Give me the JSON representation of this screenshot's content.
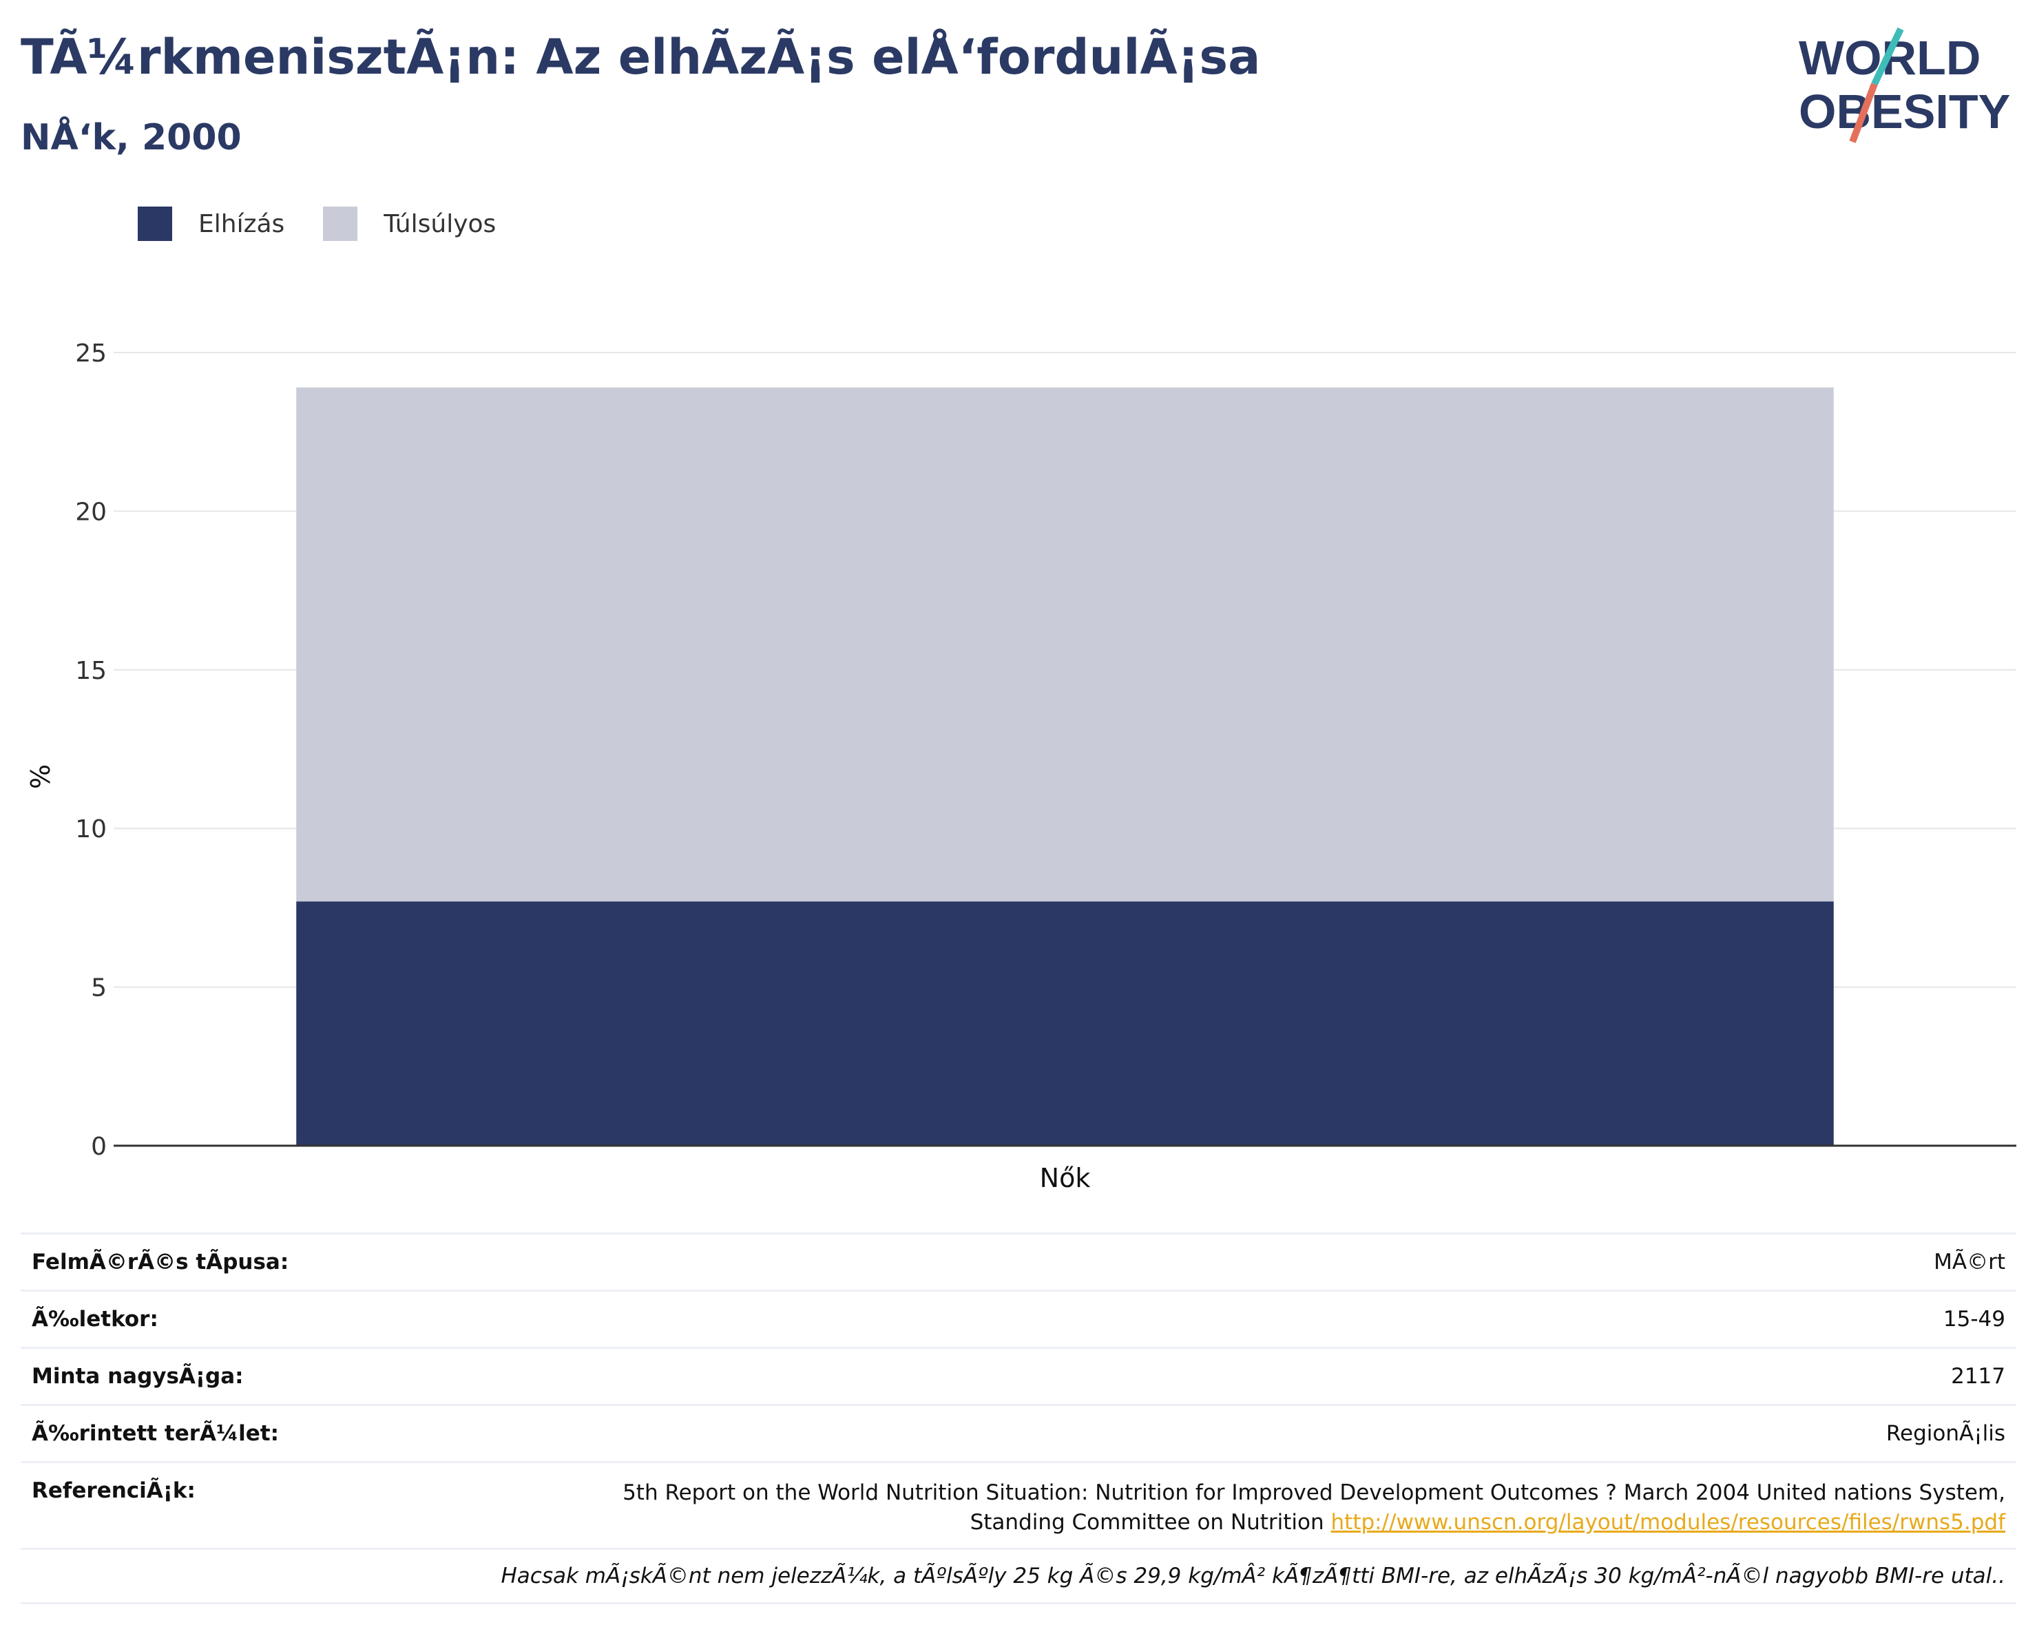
{
  "header": {
    "title": "TÃ¼rkmenisztÃ¡n: Az elhÃ­zÃ¡s elÅ‘fordulÃ¡sa",
    "subtitle": "NÅ‘k, 2000"
  },
  "logo": {
    "line1": "WORLD",
    "line2": "OBESITY",
    "colors": {
      "text": "#2b3a64",
      "slash_teal": "#3dbcb8",
      "slash_red": "#e4705b"
    }
  },
  "colors": {
    "obese": "#2b3764",
    "overweight": "#c9ccd8",
    "axis": "#333333",
    "grid": "#e6e6e6",
    "link": "#e8a91b"
  },
  "chart_data": {
    "type": "bar",
    "stacked": true,
    "categories": [
      "Nők"
    ],
    "series": [
      {
        "name": "Elhízás",
        "values": [
          7.7
        ]
      },
      {
        "name": "Túlsúlyos",
        "values": [
          16.2
        ]
      }
    ],
    "title": "TÃ¼rkmenisztÃ¡n: Az elhÃ­zÃ¡s elÅ‘fordulÃ¡sa",
    "subtitle": "NÅ‘k, 2000",
    "xlabel": "",
    "ylabel": "%",
    "ylim": [
      0,
      25
    ],
    "yticks": [
      0,
      5,
      10,
      15,
      20,
      25
    ],
    "grid": true,
    "legend": "top-left"
  },
  "meta": {
    "rows": [
      {
        "label": "FelmÃ©rÃ©s tÃpusa:",
        "value": "MÃ©rt"
      },
      {
        "label": "Ã‰letkor:",
        "value": "15-49"
      },
      {
        "label": "Minta nagysÃ¡ga:",
        "value": "2117"
      },
      {
        "label": "Ã‰rintett terÃ¼let:",
        "value": "RegionÃ¡lis"
      }
    ],
    "reference": {
      "label": "ReferenciÃ¡k:",
      "line1": "5th Report on the World Nutrition Situation: Nutrition for Improved Development Outcomes ? March 2004 United nations System,",
      "line2": "Standing Committee on Nutrition",
      "link": "http://www.unscn.org/layout/modules/resources/files/rwns5.pdf"
    },
    "note": "Hacsak mÃ¡skÃ©nt nem jelezzÃ¼k, a tÃºlsÃºly 25 kg Ã©s 29,9 kg/mÂ² kÃ¶zÃ¶tti BMI-re, az elhÃ­zÃ¡s 30 kg/mÂ²-nÃ©l nagyobb BMI-re utal.."
  }
}
